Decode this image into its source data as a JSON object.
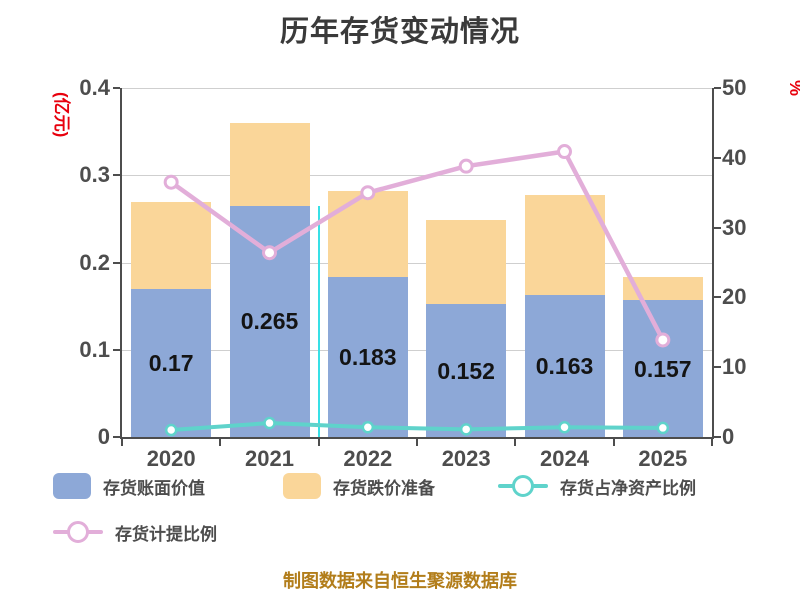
{
  "chart_data": {
    "type": "bar",
    "subtype": "stacked-bar-with-dual-axis-lines",
    "title": "历年存货变动情况",
    "categories": [
      "2020",
      "2021",
      "2022",
      "2023",
      "2024",
      "2025"
    ],
    "series": [
      {
        "name": "存货账面价值",
        "type": "bar",
        "stack": true,
        "axis": "left",
        "values": [
          0.17,
          0.265,
          0.183,
          0.152,
          0.163,
          0.157
        ],
        "value_labels": [
          "0.17",
          "0.265",
          "0.183",
          "0.152",
          "0.163",
          "0.157"
        ]
      },
      {
        "name": "存货跌价准备",
        "type": "bar",
        "stack": true,
        "axis": "left",
        "values": [
          0.099,
          0.095,
          0.099,
          0.097,
          0.114,
          0.026
        ]
      },
      {
        "name": "存货占净资产比例",
        "type": "line",
        "axis": "right",
        "values": [
          1.0,
          2.0,
          1.4,
          1.1,
          1.4,
          1.3
        ]
      },
      {
        "name": "存货计提比例",
        "type": "line",
        "axis": "right",
        "values": [
          36.5,
          26.4,
          35.0,
          38.8,
          40.9,
          13.9
        ]
      }
    ],
    "left_axis": {
      "label": "(亿元)",
      "min": 0,
      "max": 0.4,
      "ticks": [
        "0.4",
        "0.3",
        "0.2",
        "0.1",
        "0"
      ]
    },
    "right_axis": {
      "label": "%",
      "min": 0,
      "max": 50,
      "ticks": [
        "50",
        "40",
        "30",
        "20",
        "10",
        "0"
      ]
    },
    "grid": "horizontal-only",
    "legend_position": "bottom-left",
    "cursor_line": {
      "boundary_after_category": "2021",
      "boundary_index": 2,
      "from_left_value": 0.265
    }
  },
  "legend": {
    "items": [
      {
        "label": "存货账面价值",
        "marker": "rect"
      },
      {
        "label": "存货跌价准备",
        "marker": "rect"
      },
      {
        "label": "存货占净资产比例",
        "marker": "line-circle"
      },
      {
        "label": "存货计提比例",
        "marker": "line-circle"
      }
    ]
  },
  "footer": {
    "text": "制图数据来自恒生聚源数据库"
  },
  "colors": {
    "bar_book_value": "#8DA8D7",
    "bar_provision": "#FAD699",
    "line_net_asset_ratio": "#5FD3CB",
    "line_provision_ratio": "#E2AED9",
    "line_marker_fill": "#FFFFFF",
    "accent_red": "#E8000D",
    "footer_text": "#B27D1A",
    "cursor_cyan": "#38E0E6",
    "grid_line": "#CFCFCF",
    "axis_line": "#4D4D4D",
    "text_dark": "#3A3A3A"
  }
}
